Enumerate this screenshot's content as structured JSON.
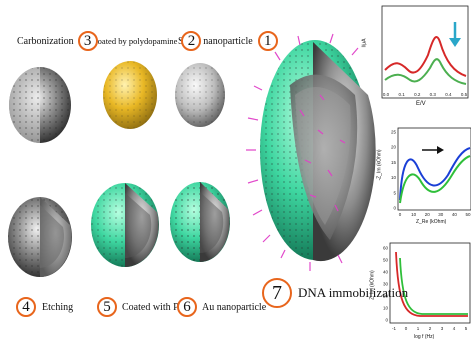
{
  "steps": [
    {
      "n": "1",
      "label": "Silica nanoparticle"
    },
    {
      "n": "2",
      "label": "Coated by polydopamine"
    },
    {
      "n": "3",
      "label": "Carbonization"
    },
    {
      "n": "4",
      "label": "Etching"
    },
    {
      "n": "5",
      "label": "Coated with PANI"
    },
    {
      "n": "6",
      "label": "Au nanoparticle"
    },
    {
      "n": "7",
      "label": "DNA immobilization"
    }
  ],
  "charts": {
    "dpv": {
      "xlabel": "E/V",
      "ylabel": "I/μA",
      "xticks": [
        "0.0",
        "0.1",
        "0.2",
        "0.3",
        "0.4",
        "0.5"
      ],
      "series": [
        {
          "name": "red",
          "color": "#d62828"
        },
        {
          "name": "green",
          "color": "#4caf50"
        }
      ],
      "arrow_color": "#2aa7c9"
    },
    "eis": {
      "xlabel": "Z_Re (kOhm)",
      "ylabel": "-Z_Im (kOhm)",
      "xticks": [
        "0",
        "10",
        "20",
        "30",
        "40",
        "50"
      ],
      "yticks": [
        "0",
        "5",
        "10",
        "15",
        "20",
        "25"
      ],
      "series": [
        {
          "name": "blue",
          "color": "#1a3fd6"
        },
        {
          "name": "green",
          "color": "#2fbf3a"
        }
      ]
    },
    "decay": {
      "xlabel": "log f (Hz)",
      "ylabel": "Z_Im (kOhm)",
      "xticks": [
        "-1",
        "0",
        "1",
        "2",
        "3",
        "4",
        "5"
      ],
      "yticks": [
        "0",
        "10",
        "20",
        "30",
        "40",
        "50",
        "60"
      ],
      "series": [
        {
          "name": "red",
          "color": "#d62828"
        },
        {
          "name": "green",
          "color": "#2fbf3a"
        }
      ]
    }
  },
  "colors": {
    "accent": "#e8651c",
    "shell_green": "#3ed6a0",
    "gold": "#e9b825",
    "dna": "#e040c8"
  }
}
